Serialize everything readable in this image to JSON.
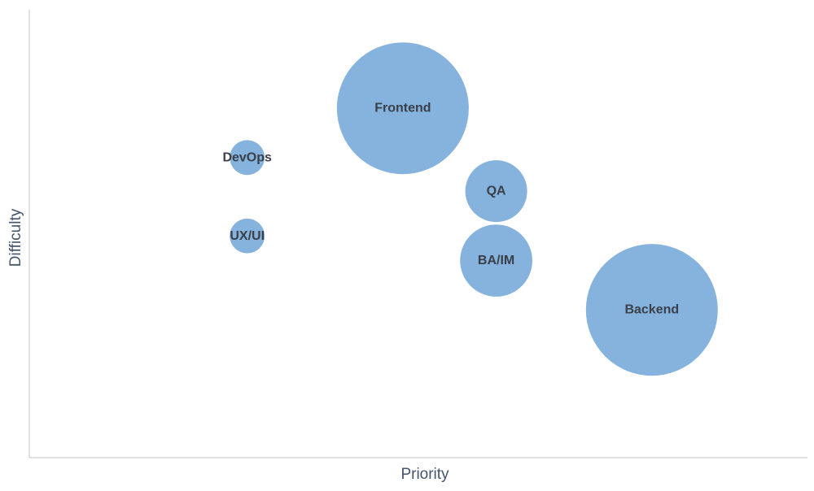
{
  "chart_data": {
    "type": "bubble",
    "title": "",
    "xlabel": "Priority",
    "ylabel": "Difficulty",
    "xlim": [
      0,
      10
    ],
    "ylim": [
      0,
      10
    ],
    "grid": false,
    "legend": "none",
    "bubble_color": "#85b3de",
    "points": [
      {
        "label": "Frontend",
        "x": 4.8,
        "y": 7.8,
        "size": 10
      },
      {
        "label": "DevOps",
        "x": 2.8,
        "y": 6.7,
        "size": 0.7
      },
      {
        "label": "QA",
        "x": 6.0,
        "y": 5.95,
        "size": 2.2
      },
      {
        "label": "UX/UI",
        "x": 2.8,
        "y": 4.95,
        "size": 0.7
      },
      {
        "label": "BA/IM",
        "x": 6.0,
        "y": 4.4,
        "size": 3.0
      },
      {
        "label": "Backend",
        "x": 8.0,
        "y": 3.3,
        "size": 10
      }
    ]
  }
}
